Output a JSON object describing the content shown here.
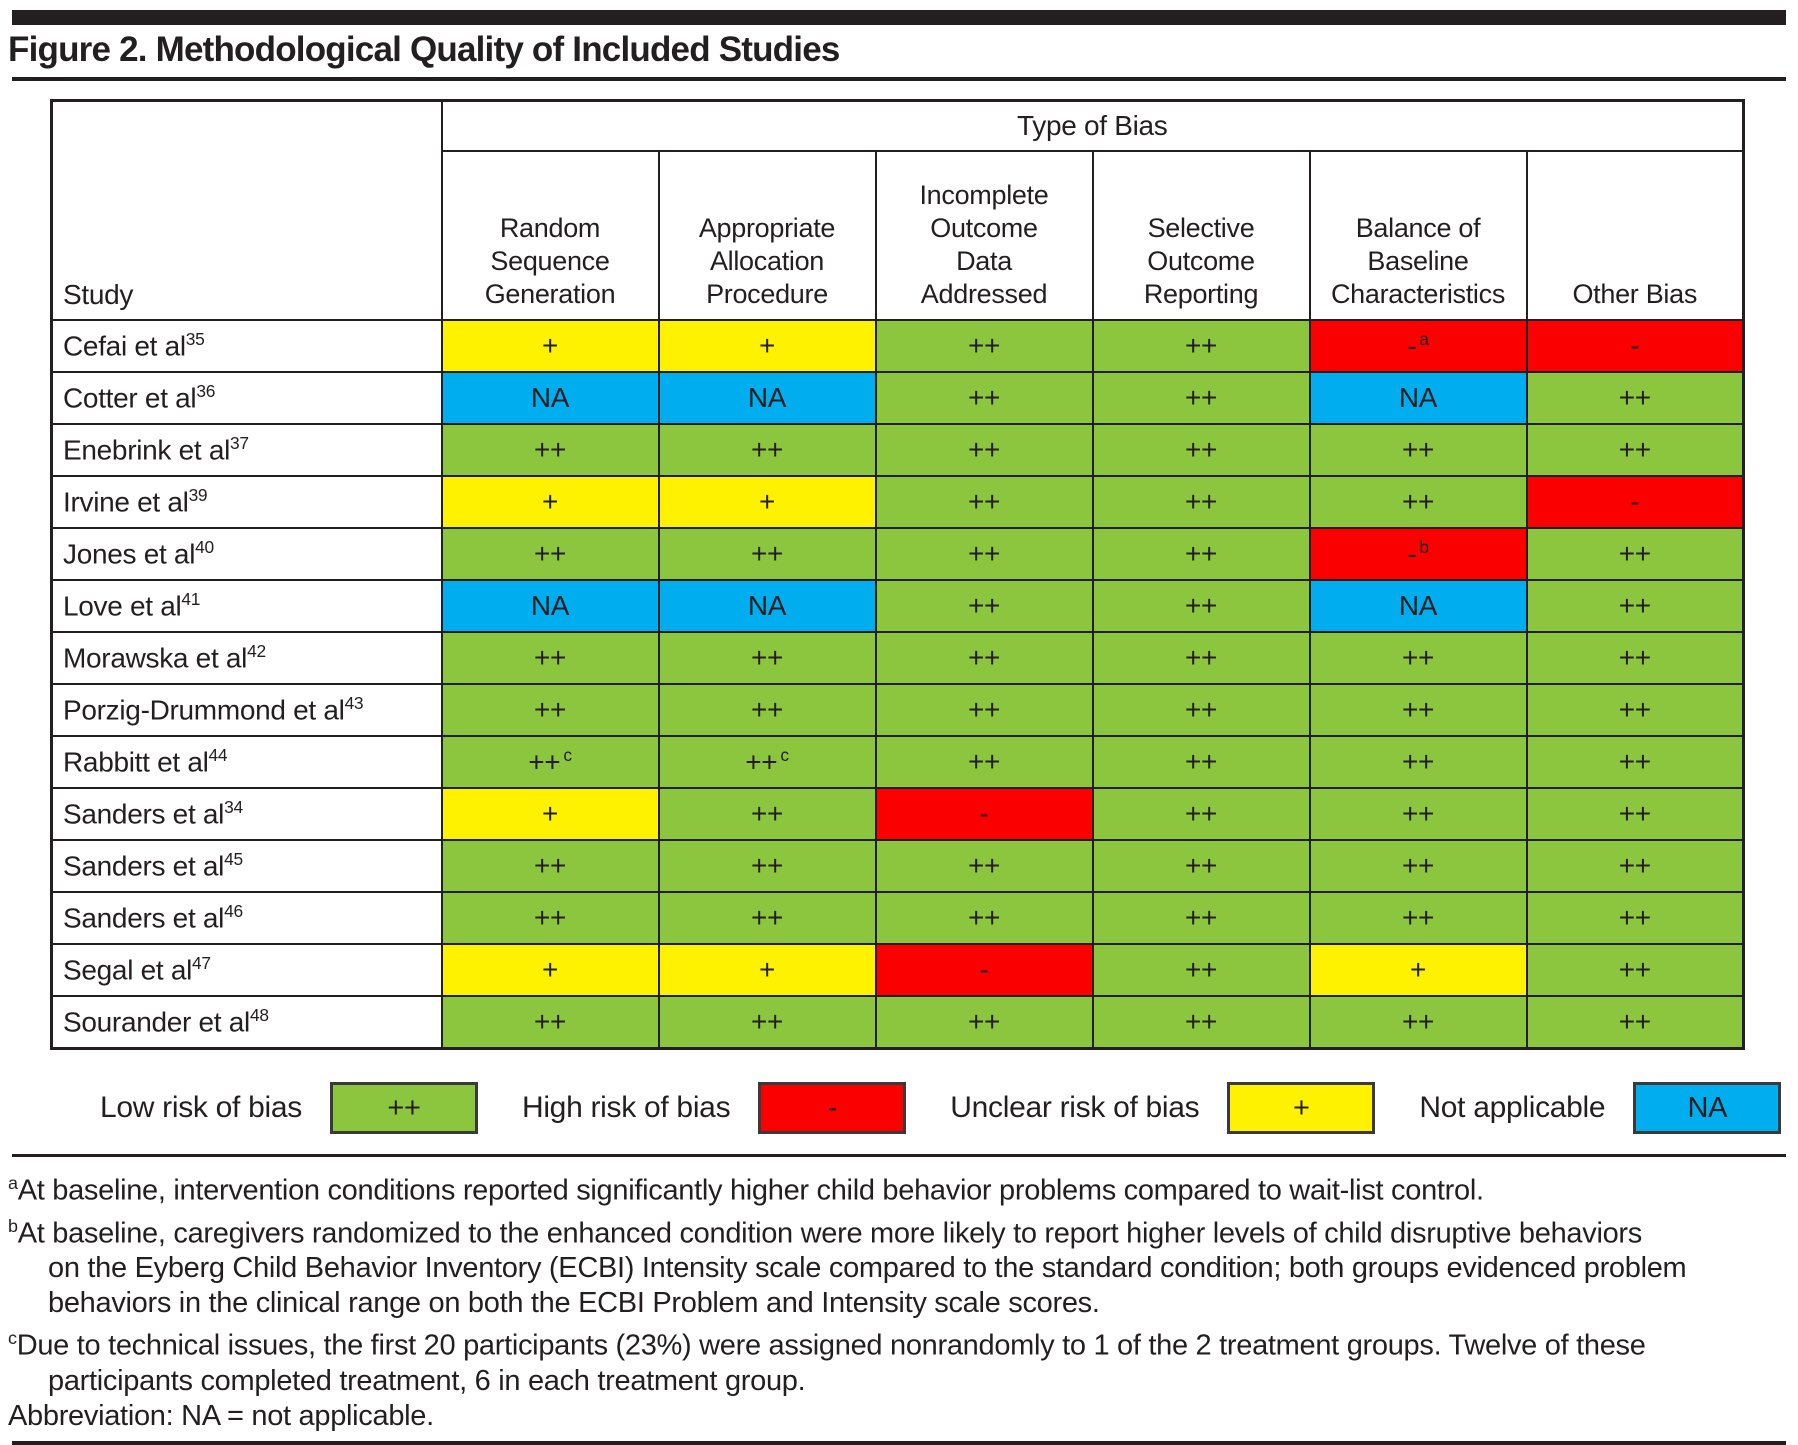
{
  "title": "Figure 2. Methodological Quality of Included Studies",
  "colors": {
    "low": "#8CC63F",
    "high": "#FA0000",
    "unclear": "#FFF200",
    "na": "#00AEEF"
  },
  "table": {
    "study_header": "Study",
    "group_header": "Type of Bias",
    "columns": [
      {
        "label": "Random Sequence Generation",
        "lines": [
          "Random",
          "Sequence",
          "Generation"
        ]
      },
      {
        "label": "Appropriate Allocation Procedure",
        "lines": [
          "Appropriate",
          "Allocation",
          "Procedure"
        ]
      },
      {
        "label": "Incomplete Outcome Data Addressed",
        "lines": [
          "Incomplete",
          "Outcome",
          "Data",
          "Addressed"
        ]
      },
      {
        "label": "Selective Outcome Reporting",
        "lines": [
          "Selective",
          "Outcome",
          "Reporting"
        ]
      },
      {
        "label": "Balance of Baseline Characteristics",
        "lines": [
          "Balance of",
          "Baseline",
          "Characteristics"
        ]
      },
      {
        "label": "Other Bias",
        "lines": [
          "Other Bias"
        ]
      }
    ],
    "rows": [
      {
        "study": "Cefai et al",
        "ref": "35",
        "cells": [
          {
            "v": "+",
            "k": "unclear"
          },
          {
            "v": "+",
            "k": "unclear"
          },
          {
            "v": "++",
            "k": "low"
          },
          {
            "v": "++",
            "k": "low"
          },
          {
            "v": "-",
            "k": "high",
            "sup": "a"
          },
          {
            "v": "-",
            "k": "high"
          }
        ]
      },
      {
        "study": "Cotter et al",
        "ref": "36",
        "cells": [
          {
            "v": "NA",
            "k": "na"
          },
          {
            "v": "NA",
            "k": "na"
          },
          {
            "v": "++",
            "k": "low"
          },
          {
            "v": "++",
            "k": "low"
          },
          {
            "v": "NA",
            "k": "na"
          },
          {
            "v": "++",
            "k": "low"
          }
        ]
      },
      {
        "study": "Enebrink et al",
        "ref": "37",
        "cells": [
          {
            "v": "++",
            "k": "low"
          },
          {
            "v": "++",
            "k": "low"
          },
          {
            "v": "++",
            "k": "low"
          },
          {
            "v": "++",
            "k": "low"
          },
          {
            "v": "++",
            "k": "low"
          },
          {
            "v": "++",
            "k": "low"
          }
        ]
      },
      {
        "study": "Irvine et al",
        "ref": "39",
        "cells": [
          {
            "v": "+",
            "k": "unclear"
          },
          {
            "v": "+",
            "k": "unclear"
          },
          {
            "v": "++",
            "k": "low"
          },
          {
            "v": "++",
            "k": "low"
          },
          {
            "v": "++",
            "k": "low"
          },
          {
            "v": "-",
            "k": "high"
          }
        ]
      },
      {
        "study": "Jones et al",
        "ref": "40",
        "cells": [
          {
            "v": "++",
            "k": "low"
          },
          {
            "v": "++",
            "k": "low"
          },
          {
            "v": "++",
            "k": "low"
          },
          {
            "v": "++",
            "k": "low"
          },
          {
            "v": "-",
            "k": "high",
            "sup": "b"
          },
          {
            "v": "++",
            "k": "low"
          }
        ]
      },
      {
        "study": "Love et al",
        "ref": "41",
        "cells": [
          {
            "v": "NA",
            "k": "na"
          },
          {
            "v": "NA",
            "k": "na"
          },
          {
            "v": "++",
            "k": "low"
          },
          {
            "v": "++",
            "k": "low"
          },
          {
            "v": "NA",
            "k": "na"
          },
          {
            "v": "++",
            "k": "low"
          }
        ]
      },
      {
        "study": "Morawska et al",
        "ref": "42",
        "cells": [
          {
            "v": "++",
            "k": "low"
          },
          {
            "v": "++",
            "k": "low"
          },
          {
            "v": "++",
            "k": "low"
          },
          {
            "v": "++",
            "k": "low"
          },
          {
            "v": "++",
            "k": "low"
          },
          {
            "v": "++",
            "k": "low"
          }
        ]
      },
      {
        "study": "Porzig-Drummond et al",
        "ref": "43",
        "cells": [
          {
            "v": "++",
            "k": "low"
          },
          {
            "v": "++",
            "k": "low"
          },
          {
            "v": "++",
            "k": "low"
          },
          {
            "v": "++",
            "k": "low"
          },
          {
            "v": "++",
            "k": "low"
          },
          {
            "v": "++",
            "k": "low"
          }
        ]
      },
      {
        "study": "Rabbitt et al",
        "ref": "44",
        "cells": [
          {
            "v": "++",
            "k": "low",
            "sup": "c"
          },
          {
            "v": "++",
            "k": "low",
            "sup": "c"
          },
          {
            "v": "++",
            "k": "low"
          },
          {
            "v": "++",
            "k": "low"
          },
          {
            "v": "++",
            "k": "low"
          },
          {
            "v": "++",
            "k": "low"
          }
        ]
      },
      {
        "study": "Sanders et al",
        "ref": "34",
        "cells": [
          {
            "v": "+",
            "k": "unclear"
          },
          {
            "v": "++",
            "k": "low"
          },
          {
            "v": "-",
            "k": "high"
          },
          {
            "v": "++",
            "k": "low"
          },
          {
            "v": "++",
            "k": "low"
          },
          {
            "v": "++",
            "k": "low"
          }
        ]
      },
      {
        "study": "Sanders et al",
        "ref": "45",
        "cells": [
          {
            "v": "++",
            "k": "low"
          },
          {
            "v": "++",
            "k": "low"
          },
          {
            "v": "++",
            "k": "low"
          },
          {
            "v": "++",
            "k": "low"
          },
          {
            "v": "++",
            "k": "low"
          },
          {
            "v": "++",
            "k": "low"
          }
        ]
      },
      {
        "study": "Sanders et al",
        "ref": "46",
        "cells": [
          {
            "v": "++",
            "k": "low"
          },
          {
            "v": "++",
            "k": "low"
          },
          {
            "v": "++",
            "k": "low"
          },
          {
            "v": "++",
            "k": "low"
          },
          {
            "v": "++",
            "k": "low"
          },
          {
            "v": "++",
            "k": "low"
          }
        ]
      },
      {
        "study": "Segal et al",
        "ref": "47",
        "cells": [
          {
            "v": "+",
            "k": "unclear"
          },
          {
            "v": "+",
            "k": "unclear"
          },
          {
            "v": "-",
            "k": "high"
          },
          {
            "v": "++",
            "k": "low"
          },
          {
            "v": "+",
            "k": "unclear"
          },
          {
            "v": "++",
            "k": "low"
          }
        ]
      },
      {
        "study": "Sourander et al",
        "ref": "48",
        "cells": [
          {
            "v": "++",
            "k": "low"
          },
          {
            "v": "++",
            "k": "low"
          },
          {
            "v": "++",
            "k": "low"
          },
          {
            "v": "++",
            "k": "low"
          },
          {
            "v": "++",
            "k": "low"
          },
          {
            "v": "++",
            "k": "low"
          }
        ]
      }
    ]
  },
  "legend": [
    {
      "label": "Low risk of bias",
      "symbol": "++",
      "key": "low"
    },
    {
      "label": "High risk of bias",
      "symbol": "-",
      "key": "high"
    },
    {
      "label": "Unclear risk of bias",
      "symbol": "+",
      "key": "unclear"
    },
    {
      "label": "Not applicable",
      "symbol": "NA",
      "key": "na"
    }
  ],
  "footnotes": [
    {
      "marker": "a",
      "lines": [
        "At baseline, intervention conditions reported significantly higher child behavior problems compared to wait-list control."
      ]
    },
    {
      "marker": "b",
      "lines": [
        "At baseline, caregivers randomized to the enhanced condition were more likely to report higher levels of child disruptive behaviors",
        "on the Eyberg Child Behavior Inventory (ECBI) Intensity scale compared to the standard condition; both groups evidenced problem",
        "behaviors in the clinical range on both the ECBI Problem and Intensity scale scores."
      ]
    },
    {
      "marker": "c",
      "lines": [
        "Due to technical issues, the first 20 participants (23%) were assigned nonrandomly to 1 of the 2 treatment groups. Twelve of these",
        "participants completed treatment, 6 in each treatment group."
      ]
    }
  ],
  "abbreviation": "Abbreviation: NA = not applicable."
}
